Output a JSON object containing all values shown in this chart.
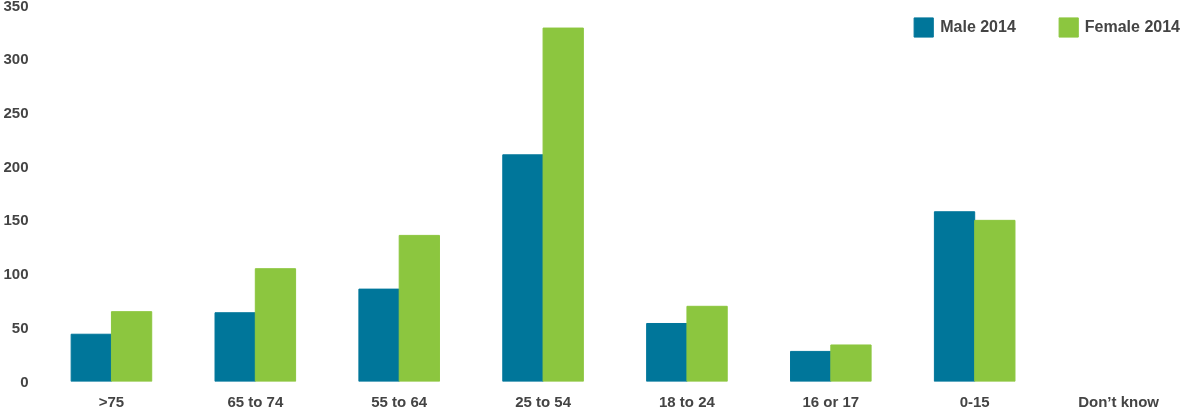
{
  "chart_data": {
    "type": "bar",
    "categories": [
      ">75",
      "65 to 74",
      "55 to 64",
      "25 to 54",
      "18 to 24",
      "16 or 17",
      "0-15",
      "Don’t know"
    ],
    "series": [
      {
        "name": "Male 2014",
        "color": "#00769a",
        "values": [
          44,
          64,
          86,
          211,
          54,
          28,
          158,
          null
        ]
      },
      {
        "name": "Female 2014",
        "color": "#8cc63f",
        "values": [
          65,
          105,
          136,
          329,
          70,
          34,
          150,
          null
        ]
      }
    ],
    "ylim": [
      0,
      350
    ],
    "yticks": [
      0,
      50,
      100,
      150,
      200,
      250,
      300,
      350
    ],
    "grid": false,
    "legend": "top right"
  }
}
